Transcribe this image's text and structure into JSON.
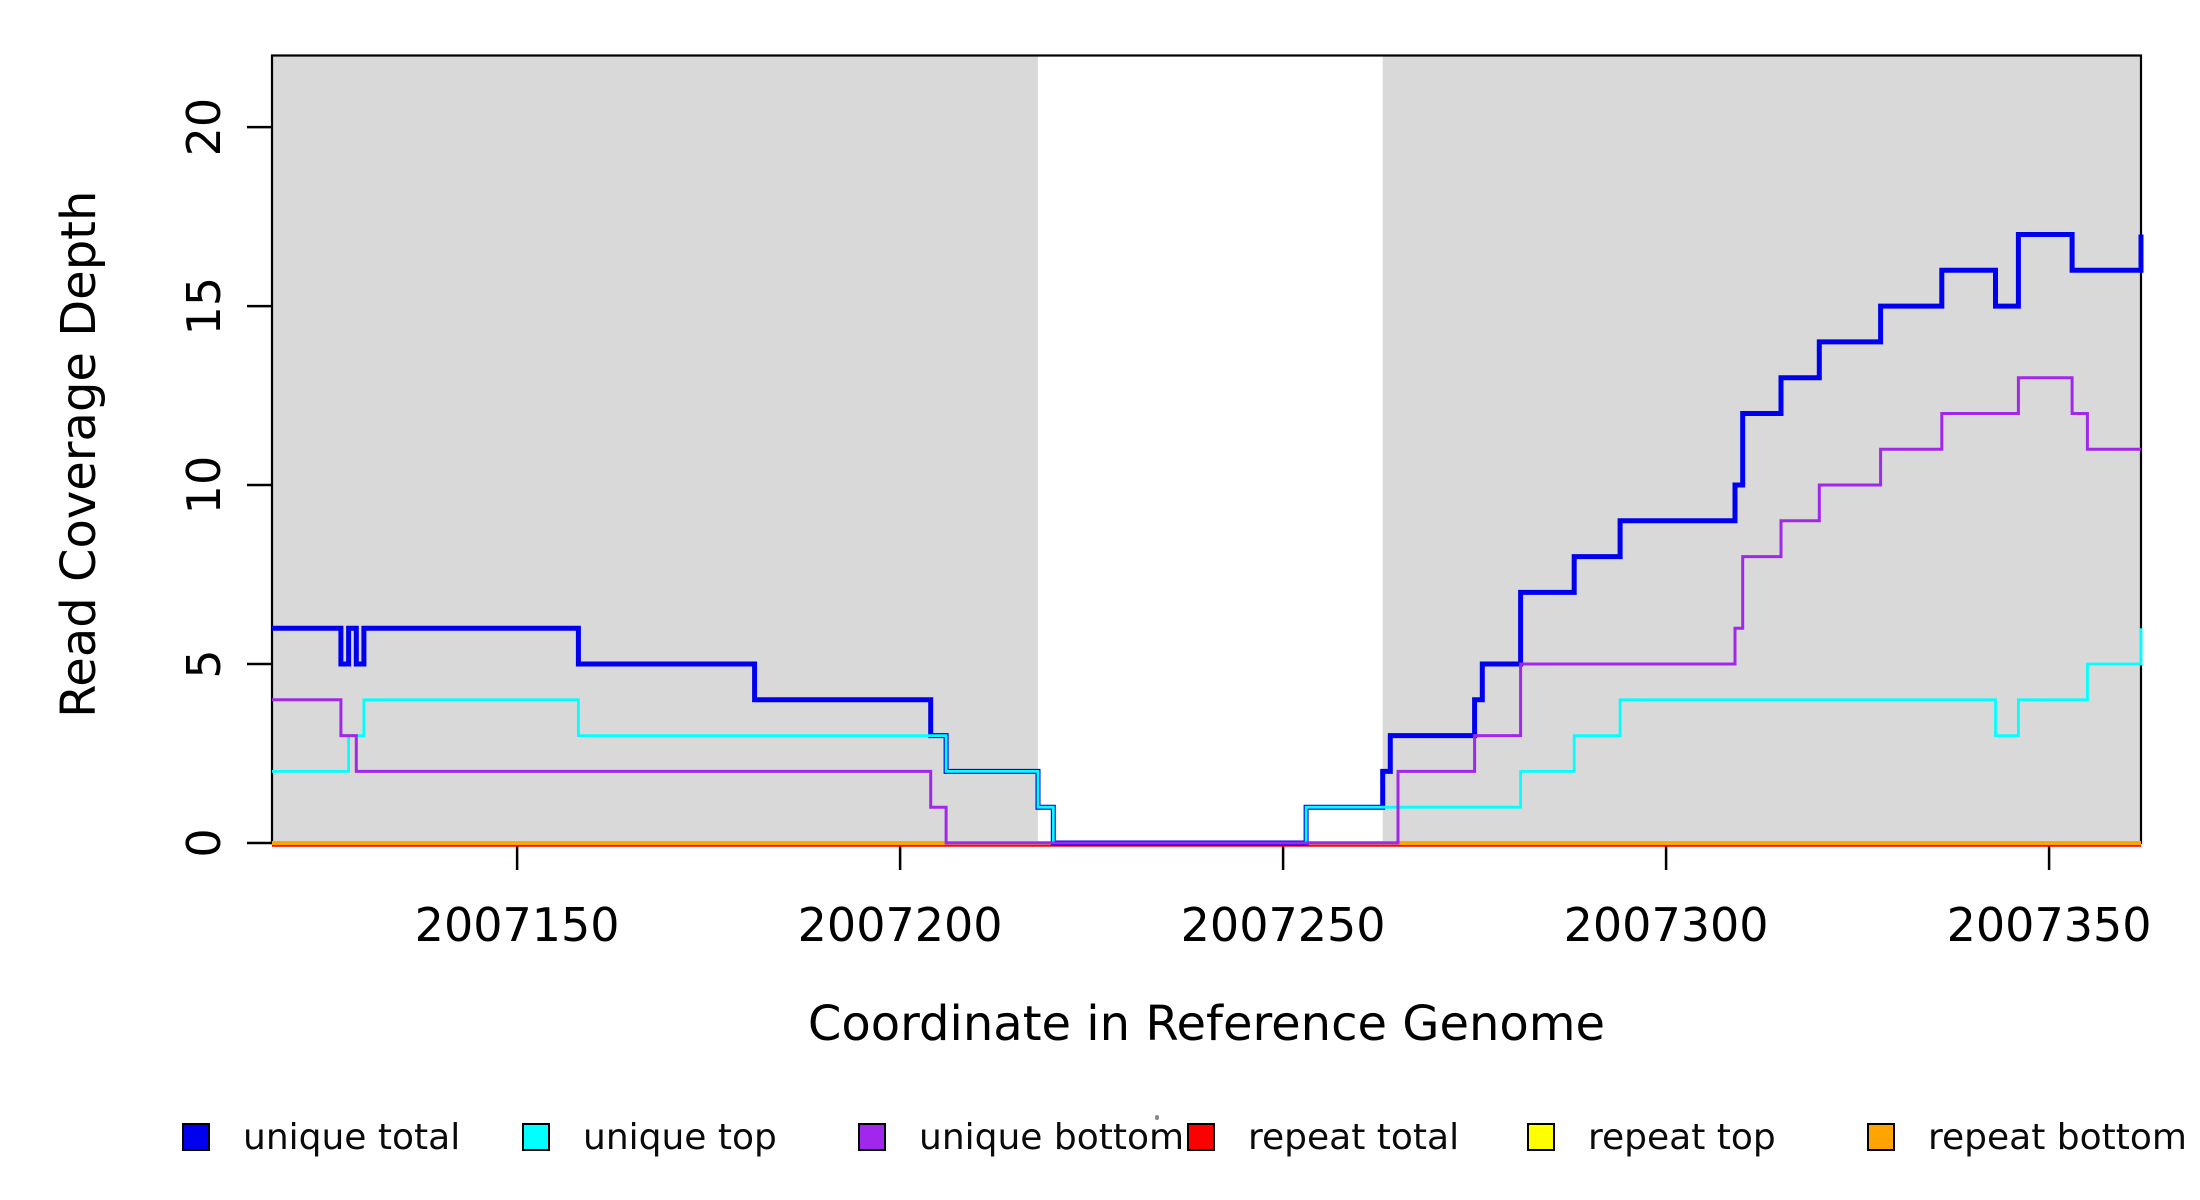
{
  "chart_data": {
    "type": "line",
    "subtype": "step",
    "title": "",
    "xlabel": "Coordinate in Reference Genome",
    "ylabel": "Read Coverage Depth",
    "xlim": [
      2007118,
      2007362
    ],
    "ylim": [
      0,
      22
    ],
    "grid": false,
    "x_ticks": [
      {
        "value": 2007150,
        "label": "2007150"
      },
      {
        "value": 2007200,
        "label": "2007200"
      },
      {
        "value": 2007250,
        "label": "2007250"
      },
      {
        "value": 2007300,
        "label": "2007300"
      },
      {
        "value": 2007350,
        "label": "2007350"
      }
    ],
    "y_ticks": [
      {
        "value": 0,
        "label": "0"
      },
      {
        "value": 5,
        "label": "5"
      },
      {
        "value": 10,
        "label": "10"
      },
      {
        "value": 15,
        "label": "15"
      },
      {
        "value": 20,
        "label": "20"
      }
    ],
    "shaded_regions": [
      {
        "x0": 2007118,
        "x1": 2007218,
        "color": "#d9d9d9"
      },
      {
        "x0": 2007263,
        "x1": 2007362,
        "color": "#d9d9d9"
      }
    ],
    "frame_color": "#000000",
    "series": [
      {
        "name": "repeat total",
        "color": "#ff0000",
        "width": 3,
        "dy": 2.2,
        "step_points": [
          [
            2007118,
            0
          ]
        ]
      },
      {
        "name": "repeat top",
        "color": "#ffff00",
        "width": 3,
        "dy": 0,
        "step_points": [
          [
            2007118,
            0
          ]
        ]
      },
      {
        "name": "repeat bottom",
        "color": "#ffa400",
        "width": 4,
        "dy": 0,
        "step_points": [
          [
            2007118,
            0
          ]
        ]
      },
      {
        "name": "unique total",
        "color": "#0000ef",
        "width": 5,
        "dy": 0,
        "step_points": [
          [
            2007118,
            6
          ],
          [
            2007127,
            5
          ],
          [
            2007128,
            6
          ],
          [
            2007129,
            5
          ],
          [
            2007130,
            6
          ],
          [
            2007158,
            5
          ],
          [
            2007181,
            4
          ],
          [
            2007204,
            3
          ],
          [
            2007206,
            2
          ],
          [
            2007218,
            1
          ],
          [
            2007220,
            0
          ],
          [
            2007253,
            1
          ],
          [
            2007263,
            2
          ],
          [
            2007264,
            3
          ],
          [
            2007275,
            4
          ],
          [
            2007276,
            5
          ],
          [
            2007281,
            7
          ],
          [
            2007288,
            8
          ],
          [
            2007294,
            9
          ],
          [
            2007309,
            10
          ],
          [
            2007310,
            12
          ],
          [
            2007315,
            13
          ],
          [
            2007320,
            14
          ],
          [
            2007328,
            15
          ],
          [
            2007336,
            16
          ],
          [
            2007343,
            15
          ],
          [
            2007346,
            17
          ],
          [
            2007353,
            16
          ],
          [
            2007362,
            17
          ]
        ]
      },
      {
        "name": "unique top",
        "color": "#00ffff",
        "width": 2.8,
        "dy": 0,
        "step_points": [
          [
            2007118,
            2
          ],
          [
            2007128,
            3
          ],
          [
            2007130,
            4
          ],
          [
            2007158,
            3
          ],
          [
            2007206,
            2
          ],
          [
            2007218,
            1
          ],
          [
            2007220,
            0
          ],
          [
            2007253,
            1
          ],
          [
            2007281,
            2
          ],
          [
            2007288,
            3
          ],
          [
            2007294,
            4
          ],
          [
            2007343,
            3
          ],
          [
            2007346,
            4
          ],
          [
            2007355,
            5
          ],
          [
            2007362,
            6
          ]
        ]
      },
      {
        "name": "unique bottom",
        "color": "#a227ec",
        "width": 3,
        "dy": 0,
        "step_points": [
          [
            2007118,
            4
          ],
          [
            2007127,
            3
          ],
          [
            2007129,
            2
          ],
          [
            2007204,
            1
          ],
          [
            2007206,
            0
          ],
          [
            2007265,
            2
          ],
          [
            2007275,
            3
          ],
          [
            2007281,
            5
          ],
          [
            2007309,
            6
          ],
          [
            2007310,
            8
          ],
          [
            2007315,
            9
          ],
          [
            2007320,
            10
          ],
          [
            2007328,
            11
          ],
          [
            2007336,
            12
          ],
          [
            2007346,
            13
          ],
          [
            2007353,
            12
          ],
          [
            2007355,
            11
          ]
        ]
      }
    ],
    "legend_position": "bottom"
  },
  "legend": {
    "items": [
      {
        "label": "unique total",
        "color": "#0000ef"
      },
      {
        "label": "unique top",
        "color": "#00ffff"
      },
      {
        "label": "unique bottom",
        "color": "#a227ec"
      },
      {
        "label": "repeat total",
        "color": "#ff0000"
      },
      {
        "label": "repeat top",
        "color": "#ffff00"
      },
      {
        "label": "repeat bottom",
        "color": "#ffa400"
      }
    ]
  }
}
